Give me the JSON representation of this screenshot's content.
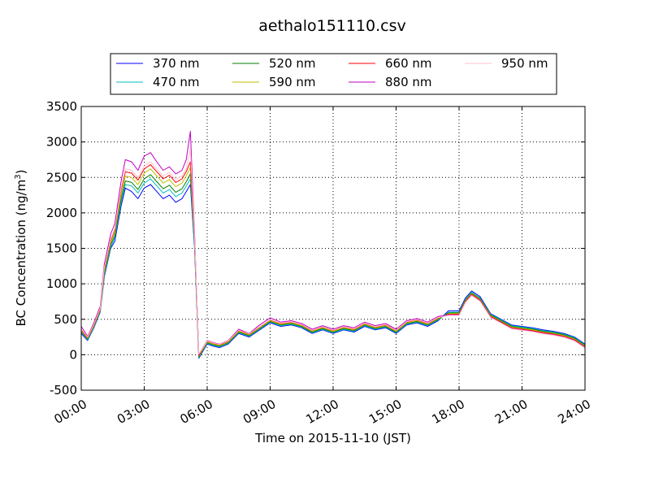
{
  "chart_data": {
    "type": "line",
    "title": "aethalo151110.csv",
    "xlabel": "Time on 2015-11-10 (JST)",
    "ylabel": "BC Concentration (ng/m³)",
    "ylabel_main": "BC Concentration (ng/m",
    "ylabel_sup": "3",
    "ylabel_tail": ")",
    "xlim": [
      "00:00",
      "24:00"
    ],
    "ylim": [
      -500,
      3500
    ],
    "x_ticks": [
      "00:00",
      "03:00",
      "06:00",
      "09:00",
      "12:00",
      "15:00",
      "18:00",
      "21:00",
      "24:00"
    ],
    "y_ticks": [
      "-500",
      "0",
      "500",
      "1000",
      "1500",
      "2000",
      "2500",
      "3000",
      "3500"
    ],
    "grid": true,
    "legend_position": "top-center, above plot",
    "x_unit": "hour",
    "keypoints_x": [
      0,
      0.3,
      0.6,
      0.9,
      1.1,
      1.4,
      1.6,
      1.9,
      2.1,
      2.4,
      2.7,
      3.0,
      3.3,
      3.6,
      3.9,
      4.2,
      4.5,
      4.8,
      5.0,
      5.2,
      5.4,
      5.6,
      5.8,
      6.0,
      6.3,
      6.6,
      7.0,
      7.5,
      8.0,
      8.5,
      9.0,
      9.5,
      10.0,
      10.5,
      11.0,
      11.5,
      12.0,
      12.5,
      13.0,
      13.5,
      14.0,
      14.5,
      15.0,
      15.5,
      16.0,
      16.5,
      17.0,
      17.5,
      18.0,
      18.3,
      18.6,
      19.0,
      19.5,
      20.0,
      20.5,
      21.0,
      21.5,
      22.0,
      22.5,
      23.0,
      23.5,
      24.0
    ],
    "series": [
      {
        "name": "370 nm",
        "color": "#0000ff",
        "values": [
          300,
          200,
          380,
          600,
          1100,
          1500,
          1600,
          2100,
          2350,
          2300,
          2200,
          2350,
          2400,
          2300,
          2200,
          2250,
          2150,
          2200,
          2300,
          2400,
          1500,
          -50,
          50,
          150,
          120,
          100,
          150,
          300,
          250,
          350,
          450,
          400,
          420,
          380,
          300,
          350,
          300,
          350,
          320,
          400,
          350,
          380,
          300,
          420,
          450,
          400,
          480,
          620,
          620,
          800,
          900,
          820,
          580,
          500,
          420,
          400,
          380,
          350,
          330,
          300,
          250,
          150
        ]
      },
      {
        "name": "470 nm",
        "color": "#00bfbf",
        "values": [
          320,
          210,
          390,
          610,
          1120,
          1520,
          1650,
          2150,
          2400,
          2380,
          2280,
          2420,
          2480,
          2380,
          2280,
          2330,
          2230,
          2280,
          2380,
          2480,
          1550,
          -40,
          60,
          160,
          130,
          110,
          160,
          310,
          260,
          360,
          460,
          410,
          430,
          390,
          310,
          360,
          310,
          360,
          330,
          410,
          360,
          390,
          310,
          430,
          460,
          410,
          490,
          600,
          600,
          780,
          880,
          800,
          570,
          490,
          410,
          390,
          370,
          340,
          320,
          290,
          240,
          140
        ]
      },
      {
        "name": "520 nm",
        "color": "#008000",
        "values": [
          330,
          220,
          400,
          620,
          1150,
          1550,
          1680,
          2200,
          2450,
          2430,
          2330,
          2480,
          2540,
          2440,
          2340,
          2390,
          2290,
          2340,
          2440,
          2550,
          1580,
          -30,
          70,
          170,
          140,
          120,
          170,
          320,
          270,
          370,
          470,
          420,
          440,
          400,
          320,
          370,
          320,
          370,
          340,
          420,
          370,
          400,
          320,
          440,
          470,
          420,
          500,
          590,
          590,
          770,
          870,
          790,
          560,
          480,
          400,
          380,
          360,
          330,
          310,
          280,
          230,
          130
        ]
      },
      {
        "name": "590 nm",
        "color": "#bfbf00",
        "values": [
          340,
          230,
          410,
          630,
          1180,
          1580,
          1720,
          2260,
          2520,
          2500,
          2400,
          2560,
          2620,
          2520,
          2420,
          2470,
          2370,
          2420,
          2520,
          2640,
          1620,
          -20,
          80,
          180,
          150,
          130,
          180,
          330,
          280,
          380,
          480,
          430,
          450,
          410,
          330,
          380,
          330,
          380,
          350,
          430,
          380,
          410,
          330,
          450,
          480,
          430,
          510,
          580,
          580,
          760,
          860,
          780,
          550,
          470,
          390,
          370,
          350,
          320,
          300,
          270,
          220,
          120
        ]
      },
      {
        "name": "660 nm",
        "color": "#ff0000",
        "values": [
          350,
          240,
          420,
          640,
          1210,
          1610,
          1760,
          2320,
          2580,
          2560,
          2460,
          2620,
          2680,
          2580,
          2480,
          2530,
          2430,
          2480,
          2580,
          2720,
          1650,
          -10,
          90,
          190,
          160,
          140,
          190,
          340,
          290,
          390,
          490,
          440,
          460,
          420,
          340,
          390,
          340,
          390,
          360,
          440,
          390,
          420,
          340,
          460,
          490,
          440,
          520,
          570,
          570,
          750,
          850,
          770,
          540,
          460,
          380,
          360,
          340,
          310,
          290,
          260,
          210,
          110
        ]
      },
      {
        "name": "880 nm",
        "color": "#bf00bf",
        "values": [
          400,
          260,
          450,
          680,
          1280,
          1700,
          1850,
          2450,
          2750,
          2720,
          2600,
          2800,
          2850,
          2720,
          2600,
          2650,
          2550,
          2600,
          2750,
          3150,
          1700,
          0,
          100,
          200,
          170,
          150,
          200,
          360,
          300,
          420,
          520,
          460,
          480,
          440,
          360,
          410,
          360,
          410,
          380,
          460,
          410,
          440,
          360,
          480,
          510,
          460,
          540,
          560,
          560,
          740,
          840,
          760,
          530,
          450,
          370,
          350,
          330,
          300,
          280,
          250,
          200,
          100
        ]
      },
      {
        "name": "950 nm",
        "color": "#ffc0cb",
        "values": [
          360,
          250,
          430,
          650,
          1230,
          1630,
          1780,
          2350,
          2620,
          2600,
          2500,
          2660,
          2720,
          2620,
          2520,
          2570,
          2470,
          2520,
          2620,
          2900,
          1660,
          10,
          95,
          195,
          165,
          145,
          195,
          345,
          295,
          395,
          495,
          445,
          465,
          425,
          345,
          395,
          345,
          395,
          365,
          445,
          395,
          425,
          345,
          465,
          495,
          445,
          525,
          555,
          555,
          735,
          835,
          755,
          525,
          445,
          365,
          345,
          325,
          295,
          275,
          245,
          195,
          95
        ]
      }
    ]
  }
}
